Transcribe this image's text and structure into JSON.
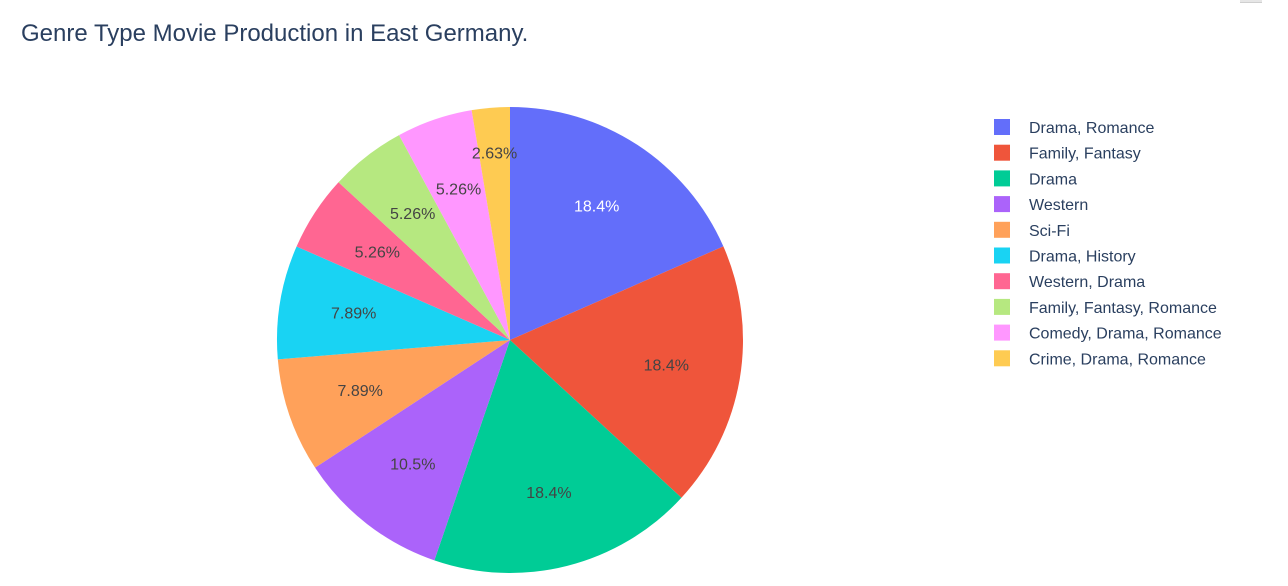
{
  "chart_data": {
    "type": "pie",
    "title": "Genre Type Movie Production in East Germany.",
    "legend_position": "right",
    "slices": [
      {
        "name": "Drama, Romance",
        "value": 18.4,
        "label": "18.4%",
        "color": "#636efa",
        "label_color": "#ffffff"
      },
      {
        "name": "Family, Fantasy",
        "value": 18.4,
        "label": "18.4%",
        "color": "#ef553b",
        "label_color": "#444444"
      },
      {
        "name": "Drama",
        "value": 18.4,
        "label": "18.4%",
        "color": "#00cc96",
        "label_color": "#444444"
      },
      {
        "name": "Western",
        "value": 10.5,
        "label": "10.5%",
        "color": "#ab63fa",
        "label_color": "#444444"
      },
      {
        "name": "Sci-Fi",
        "value": 7.89,
        "label": "7.89%",
        "color": "#ffa15a",
        "label_color": "#444444"
      },
      {
        "name": "Drama, History",
        "value": 7.89,
        "label": "7.89%",
        "color": "#19d3f3",
        "label_color": "#444444"
      },
      {
        "name": "Western, Drama",
        "value": 5.26,
        "label": "5.26%",
        "color": "#ff6692",
        "label_color": "#444444"
      },
      {
        "name": "Family, Fantasy, Romance",
        "value": 5.26,
        "label": "5.26%",
        "color": "#b6e880",
        "label_color": "#444444"
      },
      {
        "name": "Comedy, Drama, Romance",
        "value": 5.26,
        "label": "5.26%",
        "color": "#ff97ff",
        "label_color": "#444444"
      },
      {
        "name": "Crime, Drama, Romance",
        "value": 2.63,
        "label": "2.63%",
        "color": "#fecb52",
        "label_color": "#444444"
      }
    ]
  }
}
